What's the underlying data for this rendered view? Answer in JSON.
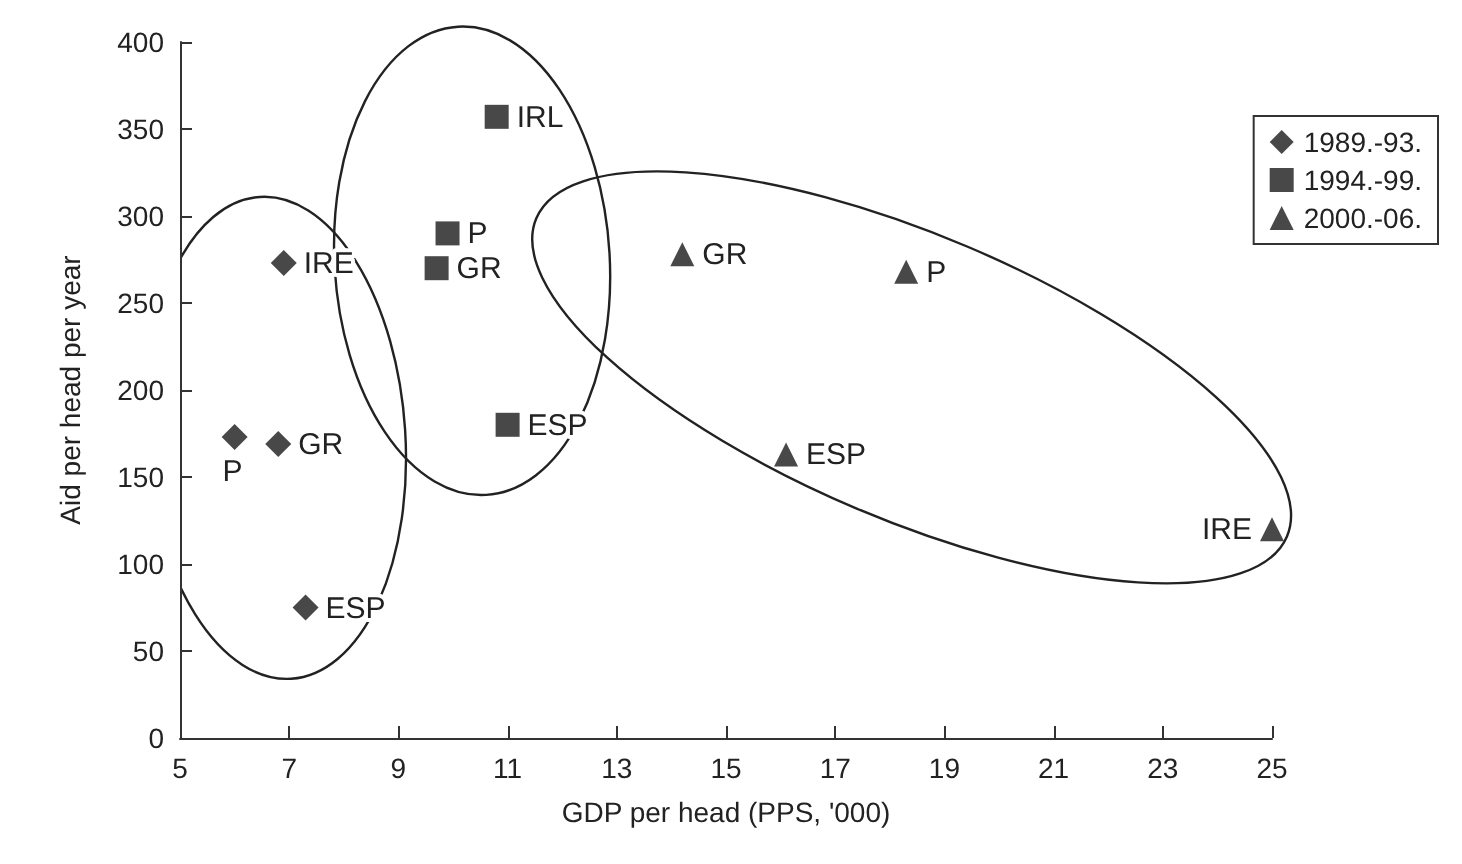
{
  "chart_data": {
    "type": "scatter",
    "xlabel": "GDP per head (PPS, '000)",
    "ylabel": "Aid per head per year",
    "series": [
      {
        "name": "1989.-93.",
        "color": "#1a1a1a",
        "marker": "diamond",
        "x": [
          6.9,
          6.0,
          6.8,
          7.3
        ],
        "values": [
          273,
          173,
          169,
          75
        ]
      },
      {
        "name": "1994.-99.",
        "color": "#1a1a1a",
        "marker": "square",
        "x": [
          10.8,
          9.9,
          9.7,
          11.0
        ],
        "values": [
          357,
          290,
          270,
          180
        ]
      },
      {
        "name": "2000.-06.",
        "color": "#1a1a1a",
        "marker": "triangle",
        "x": [
          14.2,
          18.3,
          16.1,
          25.0
        ],
        "values": [
          278,
          268,
          163,
          120
        ]
      }
    ],
    "annotations": [
      {
        "text": "IRE",
        "x": 6.9,
        "y": 273
      },
      {
        "text": "P",
        "x": 6.0,
        "y": 173
      },
      {
        "text": "GR",
        "x": 6.8,
        "y": 169
      },
      {
        "text": "ESP",
        "x": 7.3,
        "y": 75
      },
      {
        "text": "IRL",
        "x": 10.8,
        "y": 357
      },
      {
        "text": "P",
        "x": 9.9,
        "y": 290
      },
      {
        "text": "GR",
        "x": 9.7,
        "y": 270
      },
      {
        "text": "ESP",
        "x": 11.0,
        "y": 180
      },
      {
        "text": "GR",
        "x": 14.2,
        "y": 278
      },
      {
        "text": "P",
        "x": 18.3,
        "y": 268
      },
      {
        "text": "ESP",
        "x": 16.1,
        "y": 163
      },
      {
        "text": "IRE",
        "x": 25.0,
        "y": 120
      }
    ],
    "xlim": [
      5,
      25
    ],
    "xticks": [
      5,
      7,
      9,
      11,
      13,
      15,
      17,
      19,
      21,
      23,
      25
    ],
    "ylim": [
      0,
      400
    ],
    "yticks": [
      0,
      50,
      100,
      150,
      200,
      250,
      300,
      350,
      400
    ],
    "grid": false,
    "legend": "top right"
  }
}
